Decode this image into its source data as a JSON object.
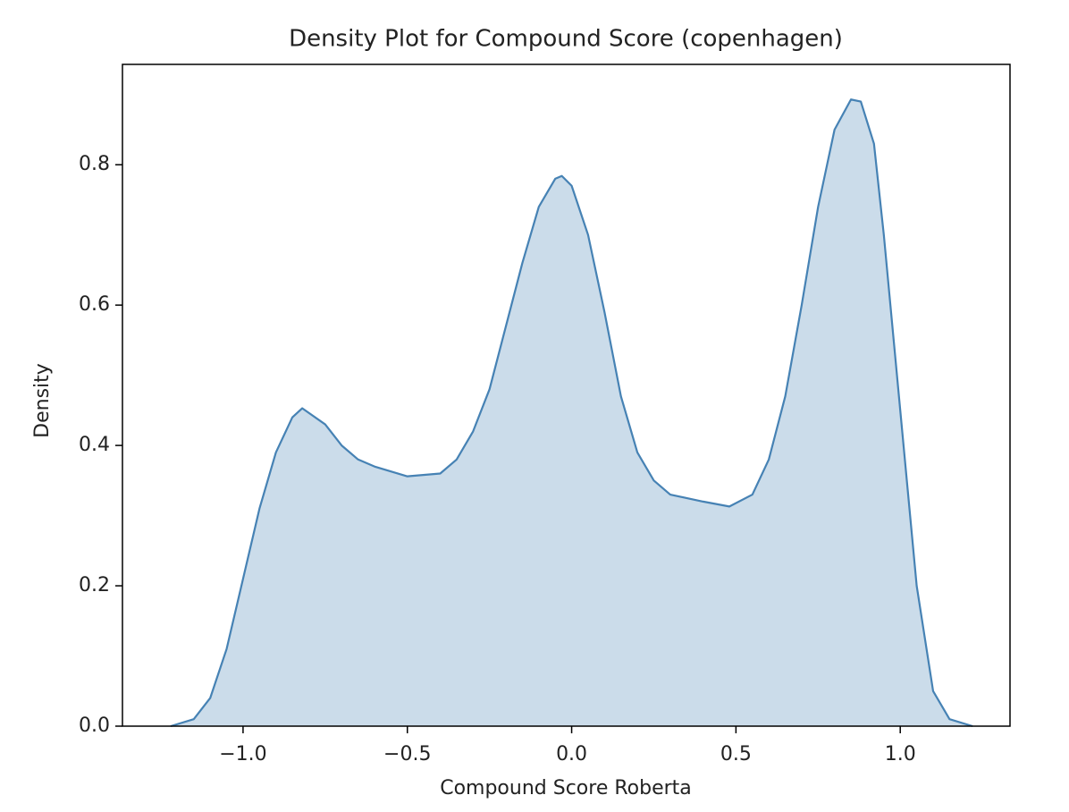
{
  "chart_data": {
    "type": "kde",
    "title": "Density Plot for Compound Score (copenhagen)",
    "xlabel": "Compound Score Roberta",
    "ylabel": "Density",
    "color": "#4682b4",
    "fill_opacity": 0.28,
    "x": [
      -1.22,
      -1.15,
      -1.1,
      -1.05,
      -1.0,
      -0.95,
      -0.9,
      -0.85,
      -0.82,
      -0.75,
      -0.7,
      -0.65,
      -0.6,
      -0.5,
      -0.4,
      -0.35,
      -0.3,
      -0.25,
      -0.2,
      -0.15,
      -0.1,
      -0.05,
      -0.03,
      0.0,
      0.05,
      0.1,
      0.15,
      0.2,
      0.25,
      0.3,
      0.4,
      0.48,
      0.55,
      0.6,
      0.65,
      0.7,
      0.75,
      0.8,
      0.85,
      0.88,
      0.92,
      0.95,
      1.0,
      1.05,
      1.1,
      1.15,
      1.22
    ],
    "values": [
      0.0,
      0.01,
      0.04,
      0.11,
      0.21,
      0.31,
      0.39,
      0.44,
      0.453,
      0.43,
      0.4,
      0.38,
      0.37,
      0.356,
      0.36,
      0.38,
      0.42,
      0.48,
      0.57,
      0.66,
      0.74,
      0.78,
      0.784,
      0.77,
      0.7,
      0.59,
      0.47,
      0.39,
      0.35,
      0.33,
      0.32,
      0.313,
      0.33,
      0.38,
      0.47,
      0.6,
      0.74,
      0.85,
      0.893,
      0.89,
      0.83,
      0.7,
      0.45,
      0.2,
      0.05,
      0.01,
      0.0
    ],
    "xlim": [
      -1.367,
      1.334
    ],
    "ylim": [
      0,
      0.943
    ],
    "xticks": [
      {
        "value": -1.0,
        "label": "−1.0"
      },
      {
        "value": -0.5,
        "label": "−0.5"
      },
      {
        "value": 0,
        "label": "0.0"
      },
      0.5,
      {
        "value": 1.0,
        "label": "1.0"
      }
    ],
    "yticks": [
      {
        "value": 0,
        "label": "0.0"
      },
      0.2,
      0.4,
      0.6,
      0.8
    ],
    "grid": false
  }
}
